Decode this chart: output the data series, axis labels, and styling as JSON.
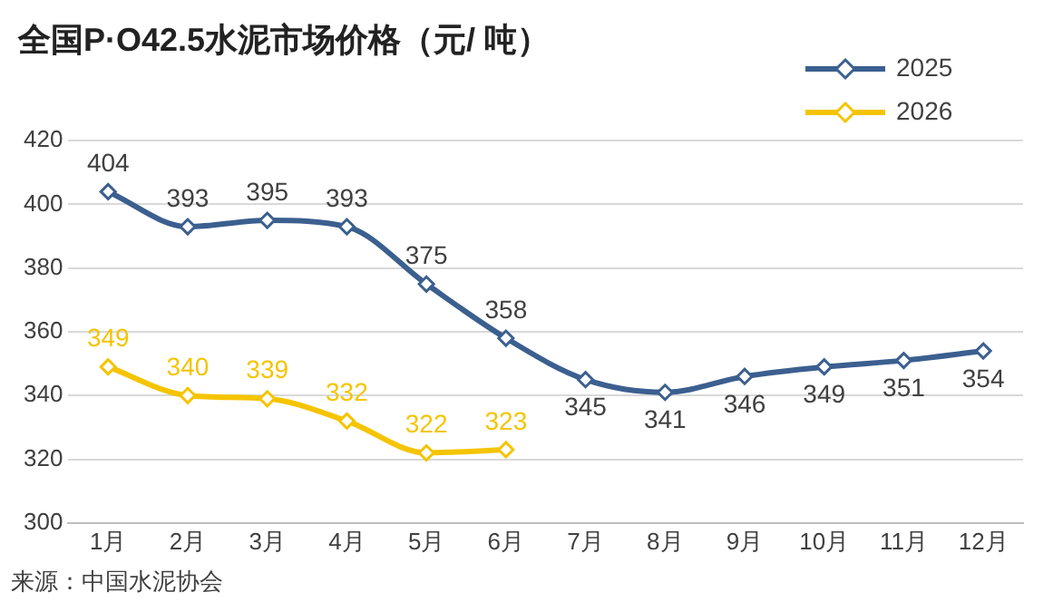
{
  "chart_data": {
    "type": "line",
    "title": "全国P·O42.5水泥市场价格（元/ 吨）",
    "categories": [
      "1月",
      "2月",
      "3月",
      "4月",
      "5月",
      "6月",
      "7月",
      "8月",
      "9月",
      "10月",
      "11月",
      "12月"
    ],
    "series": [
      {
        "name": "2025",
        "color": "#3b5f8f",
        "values": [
          404,
          393,
          395,
          393,
          375,
          358,
          345,
          341,
          346,
          349,
          351,
          354
        ]
      },
      {
        "name": "2026",
        "color": "#f5c400",
        "values": [
          349,
          340,
          339,
          332,
          322,
          323,
          null,
          null,
          null,
          null,
          null,
          null
        ]
      }
    ],
    "ylim": [
      300,
      420
    ],
    "yticks": [
      300,
      320,
      340,
      360,
      380,
      400,
      420
    ],
    "grid": "y",
    "legend": "top right",
    "marker": "diamond",
    "line_style": "solid",
    "data_labels": true,
    "annotations": [
      "来源：中国水泥协会"
    ]
  }
}
